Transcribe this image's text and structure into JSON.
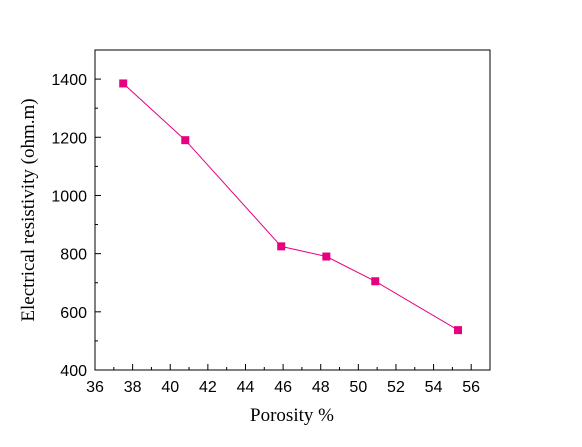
{
  "chart_data": {
    "type": "line",
    "title": "",
    "xlabel": "Porosity %",
    "ylabel": "Electrical resistivity (ohm.m)",
    "xlim": [
      36,
      57
    ],
    "ylim": [
      400,
      1500
    ],
    "xticks": [
      36,
      38,
      40,
      42,
      44,
      46,
      48,
      50,
      52,
      54,
      56
    ],
    "yticks": [
      400,
      600,
      800,
      1000,
      1200,
      1400
    ],
    "grid": false,
    "legend": "none",
    "series": [
      {
        "color": "#e6007e",
        "marker": "square",
        "points": [
          {
            "x": 37.5,
            "y": 1385
          },
          {
            "x": 40.8,
            "y": 1190
          },
          {
            "x": 45.9,
            "y": 825
          },
          {
            "x": 48.3,
            "y": 790
          },
          {
            "x": 50.9,
            "y": 705
          },
          {
            "x": 55.3,
            "y": 537
          }
        ]
      }
    ]
  }
}
